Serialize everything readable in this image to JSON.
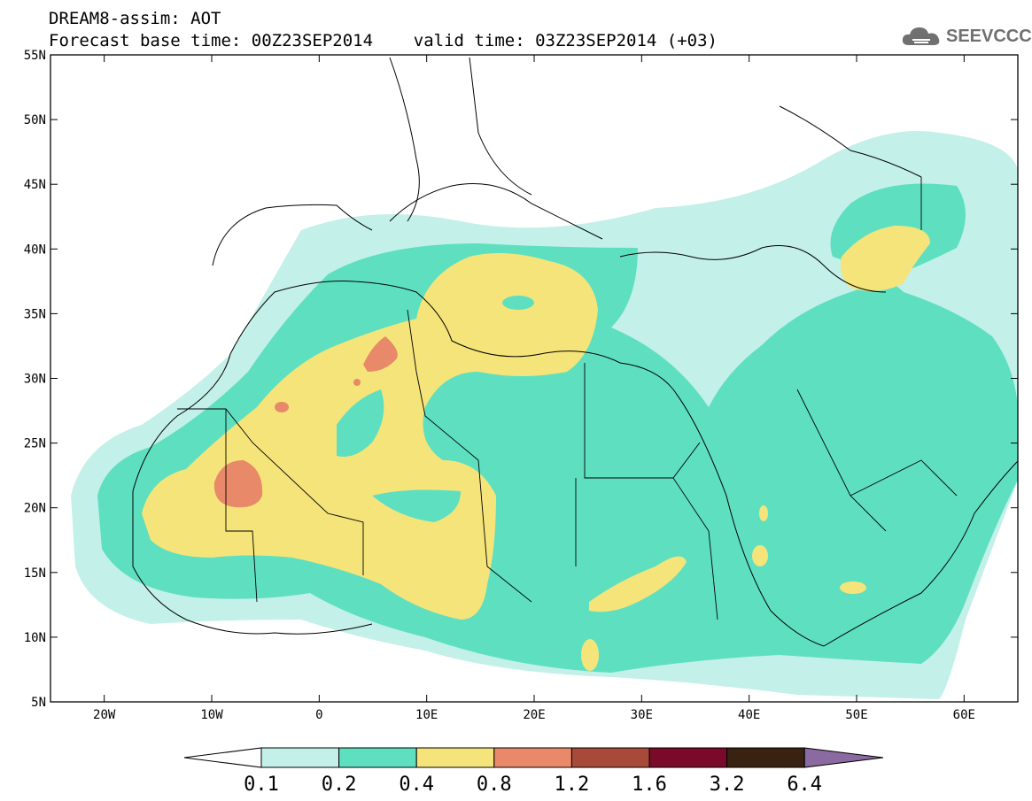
{
  "header": {
    "title_line1": "DREAM8-assim: AOT",
    "title_line2": "Forecast base time: 00Z23SEP2014    valid time: 03Z23SEP2014 (+03)"
  },
  "logo": {
    "text": "SEEVCCC",
    "icon": "cloud-icon"
  },
  "map": {
    "lat_labels": [
      "55N",
      "50N",
      "45N",
      "40N",
      "35N",
      "30N",
      "25N",
      "20N",
      "15N",
      "10N",
      "5N"
    ],
    "lat_values": [
      55,
      50,
      45,
      40,
      35,
      30,
      25,
      20,
      15,
      10,
      5
    ],
    "lon_labels": [
      "20W",
      "10W",
      "0",
      "10E",
      "20E",
      "30E",
      "40E",
      "50E",
      "60E"
    ],
    "lon_values": [
      -20,
      -10,
      0,
      10,
      20,
      30,
      40,
      50,
      60
    ],
    "lon_range": [
      -25,
      65
    ],
    "lat_range": [
      5,
      55
    ]
  },
  "colorbar": {
    "labels": [
      "0.1",
      "0.2",
      "0.4",
      "0.8",
      "1.2",
      "1.6",
      "3.2",
      "6.4"
    ],
    "colors": [
      "#ffffff",
      "#c3f0e8",
      "#5ee0c0",
      "#f5e47a",
      "#e8896a",
      "#a84a3a",
      "#7a0a2a",
      "#3a2212",
      "#8a6aa0"
    ]
  }
}
